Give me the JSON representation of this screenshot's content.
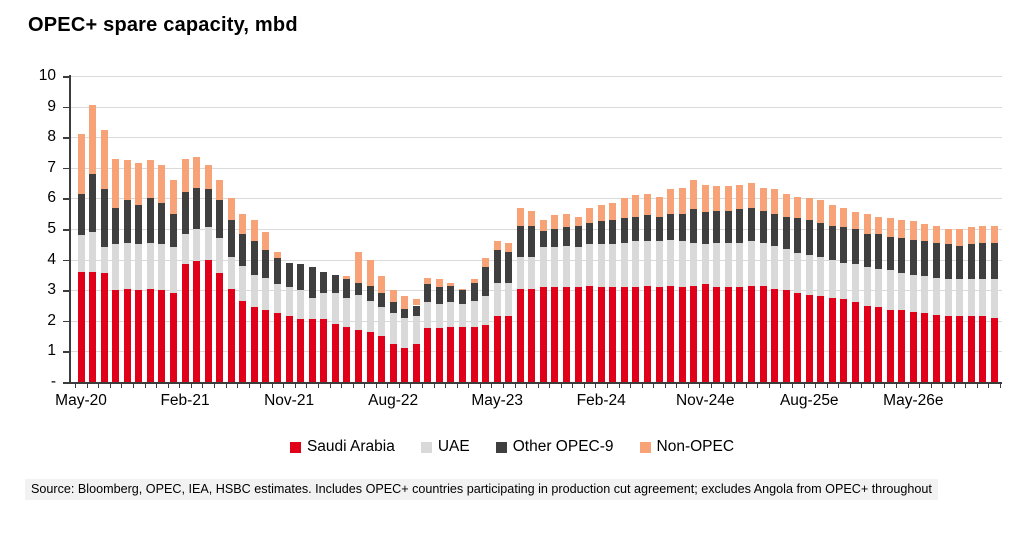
{
  "source_note": "Source: Bloomberg, OPEC, IEA, HSBC estimates. Includes OPEC+ countries participating in production cut agreement; excludes Angola from OPEC+ throughout",
  "styles": {
    "axis_color": "#3c3c3c",
    "grid_color": "#dadada",
    "source_bg": "#f2f2f2",
    "saudi_red": "#e1001a",
    "uae_gray": "#d9d9d9",
    "other_dark": "#3f3f3f",
    "non_opec_salmon": "#f7a377"
  },
  "chart_data": {
    "type": "bar",
    "stacked": true,
    "title": "OPEC+ spare capacity, mbd",
    "xlabel": "",
    "ylabel": "mbd",
    "ylim": [
      0,
      10
    ],
    "grid": true,
    "legend_position": "bottom",
    "ytick_labels": [
      "-",
      "1",
      "2",
      "3",
      "4",
      "5",
      "6",
      "7",
      "8",
      "9",
      "10"
    ],
    "xticks": [
      {
        "index": 0,
        "label": "May-20"
      },
      {
        "index": 9,
        "label": "Feb-21"
      },
      {
        "index": 18,
        "label": "Nov-21"
      },
      {
        "index": 27,
        "label": "Aug-22"
      },
      {
        "index": 36,
        "label": "May-23"
      },
      {
        "index": 45,
        "label": "Feb-24"
      },
      {
        "index": 54,
        "label": "Nov-24e"
      },
      {
        "index": 63,
        "label": "Aug-25e"
      },
      {
        "index": 72,
        "label": "May-26e"
      }
    ],
    "categories": [
      "May-20",
      "Jun-20",
      "Jul-20",
      "Aug-20",
      "Sep-20",
      "Oct-20",
      "Nov-20",
      "Dec-20",
      "Jan-21",
      "Feb-21",
      "Mar-21",
      "Apr-21",
      "May-21",
      "Jun-21",
      "Jul-21",
      "Aug-21",
      "Sep-21",
      "Oct-21",
      "Nov-21",
      "Dec-21",
      "Jan-22",
      "Feb-22",
      "Mar-22",
      "Apr-22",
      "May-22",
      "Jun-22",
      "Jul-22",
      "Aug-22",
      "Sep-22",
      "Oct-22",
      "Nov-22",
      "Dec-22",
      "Jan-23",
      "Feb-23",
      "Mar-23",
      "Apr-23",
      "May-23",
      "Jun-23",
      "Jul-23",
      "Aug-23",
      "Sep-23",
      "Oct-23",
      "Nov-23",
      "Dec-23",
      "Jan-24",
      "Feb-24",
      "Mar-24",
      "Apr-24",
      "May-24",
      "Jun-24",
      "Jul-24",
      "Aug-24",
      "Sep-24",
      "Oct-24",
      "Nov-24",
      "Dec-24",
      "Jan-25",
      "Feb-25",
      "Mar-25",
      "Apr-25",
      "May-25",
      "Jun-25",
      "Jul-25",
      "Aug-25",
      "Sep-25",
      "Oct-25",
      "Nov-25",
      "Dec-25",
      "Jan-26",
      "Feb-26",
      "Mar-26",
      "Apr-26",
      "May-26",
      "Jun-26",
      "Jul-26",
      "Aug-26",
      "Sep-26",
      "Oct-26",
      "Nov-26",
      "Dec-26"
    ],
    "series": [
      {
        "name": "Saudi Arabia",
        "color": "#e1001a",
        "values": [
          3.6,
          3.6,
          3.55,
          3.0,
          3.05,
          3.0,
          3.05,
          3.0,
          2.9,
          3.85,
          3.95,
          4.0,
          3.55,
          3.05,
          2.65,
          2.45,
          2.35,
          2.25,
          2.15,
          2.05,
          2.05,
          2.05,
          1.9,
          1.8,
          1.7,
          1.65,
          1.5,
          1.25,
          1.1,
          1.25,
          1.75,
          1.75,
          1.8,
          1.8,
          1.8,
          1.85,
          2.15,
          2.15,
          3.05,
          3.05,
          3.1,
          3.1,
          3.1,
          3.1,
          3.15,
          3.1,
          3.1,
          3.1,
          3.1,
          3.15,
          3.1,
          3.15,
          3.1,
          3.15,
          3.2,
          3.1,
          3.1,
          3.1,
          3.15,
          3.15,
          3.05,
          3.0,
          2.9,
          2.85,
          2.8,
          2.75,
          2.7,
          2.6,
          2.5,
          2.45,
          2.35,
          2.35,
          2.3,
          2.25,
          2.2,
          2.15,
          2.15,
          2.15,
          2.15,
          2.1
        ]
      },
      {
        "name": "UAE",
        "color": "#d9d9d9",
        "values": [
          1.2,
          1.3,
          0.85,
          1.5,
          1.5,
          1.5,
          1.5,
          1.5,
          1.5,
          1.0,
          1.05,
          1.05,
          1.15,
          1.05,
          1.15,
          1.05,
          1.05,
          0.95,
          0.95,
          0.95,
          0.7,
          0.85,
          1.0,
          0.95,
          1.15,
          1.0,
          0.95,
          1.0,
          1.0,
          0.9,
          0.85,
          0.8,
          0.8,
          0.75,
          0.85,
          0.95,
          1.1,
          1.1,
          1.05,
          1.05,
          1.3,
          1.3,
          1.35,
          1.3,
          1.35,
          1.4,
          1.4,
          1.45,
          1.5,
          1.45,
          1.5,
          1.5,
          1.5,
          1.4,
          1.3,
          1.45,
          1.45,
          1.45,
          1.45,
          1.4,
          1.4,
          1.35,
          1.3,
          1.3,
          1.3,
          1.25,
          1.2,
          1.25,
          1.25,
          1.25,
          1.3,
          1.2,
          1.2,
          1.2,
          1.2,
          1.2,
          1.2,
          1.2,
          1.2,
          1.25
        ]
      },
      {
        "name": "Other OPEC-9",
        "color": "#3f3f3f",
        "values": [
          1.35,
          1.9,
          1.9,
          1.2,
          1.4,
          1.3,
          1.45,
          1.35,
          1.1,
          1.35,
          1.35,
          1.25,
          1.25,
          1.2,
          1.05,
          1.1,
          0.9,
          0.85,
          0.8,
          0.85,
          1.0,
          0.7,
          0.6,
          0.6,
          0.4,
          0.5,
          0.45,
          0.35,
          0.3,
          0.35,
          0.6,
          0.55,
          0.55,
          0.45,
          0.6,
          0.95,
          1.05,
          1.0,
          1.0,
          1.0,
          0.55,
          0.6,
          0.6,
          0.7,
          0.7,
          0.75,
          0.8,
          0.8,
          0.8,
          0.85,
          0.8,
          0.85,
          0.9,
          1.1,
          1.05,
          1.05,
          1.05,
          1.1,
          1.1,
          1.05,
          1.05,
          1.05,
          1.15,
          1.15,
          1.1,
          1.1,
          1.15,
          1.15,
          1.1,
          1.15,
          1.1,
          1.15,
          1.15,
          1.15,
          1.15,
          1.15,
          1.1,
          1.15,
          1.2,
          1.2
        ]
      },
      {
        "name": "Non-OPEC",
        "color": "#f7a377",
        "values": [
          1.95,
          2.25,
          1.95,
          1.6,
          1.3,
          1.35,
          1.25,
          1.25,
          1.1,
          1.1,
          1.0,
          0.8,
          0.65,
          0.7,
          0.65,
          0.7,
          0.6,
          0.2,
          0,
          0,
          0,
          0,
          0,
          0.1,
          1.0,
          0.85,
          0.55,
          0.4,
          0.4,
          0.2,
          0.2,
          0.25,
          0.1,
          0.05,
          0.1,
          0.3,
          0.3,
          0.3,
          0.6,
          0.5,
          0.35,
          0.45,
          0.45,
          0.3,
          0.5,
          0.55,
          0.55,
          0.65,
          0.7,
          0.7,
          0.65,
          0.8,
          0.85,
          0.95,
          0.9,
          0.8,
          0.8,
          0.8,
          0.8,
          0.75,
          0.8,
          0.75,
          0.7,
          0.7,
          0.75,
          0.7,
          0.65,
          0.55,
          0.65,
          0.55,
          0.6,
          0.6,
          0.6,
          0.55,
          0.55,
          0.5,
          0.55,
          0.55,
          0.55,
          0.55
        ]
      }
    ]
  }
}
